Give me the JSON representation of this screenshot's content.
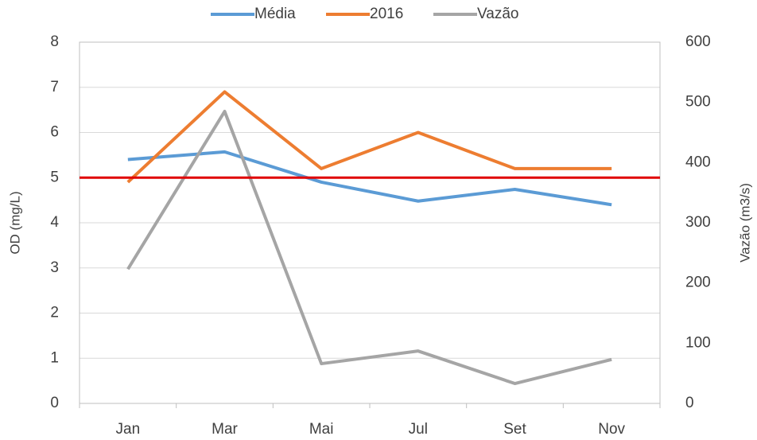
{
  "chart_data": {
    "type": "line",
    "categories": [
      "Jan",
      "Mar",
      "Mai",
      "Jul",
      "Set",
      "Nov"
    ],
    "y_label": "OD (mg/L)",
    "y2_label": "Vazão (m3/s)",
    "ylim": [
      0,
      8
    ],
    "yticks": [
      0,
      1,
      2,
      3,
      4,
      5,
      6,
      7,
      8
    ],
    "y2lim": [
      0,
      600
    ],
    "y2ticks": [
      0,
      100,
      200,
      300,
      400,
      500,
      600
    ],
    "grid": true,
    "legend": "top",
    "reference_line": {
      "value": 5,
      "color": "#e00000"
    },
    "series": [
      {
        "name": "Média",
        "color": "#5b9bd5",
        "values": [
          5.4,
          5.57,
          4.9,
          4.48,
          4.74,
          4.4
        ]
      },
      {
        "name": "2016",
        "color": "#ed7d31",
        "values": [
          4.9,
          6.9,
          5.2,
          6.0,
          5.2,
          5.2
        ]
      },
      {
        "name": "Vazão",
        "color": "#a5a5a5",
        "axis": "y2",
        "values": [
          223,
          485,
          66,
          87,
          33,
          73
        ]
      }
    ]
  }
}
